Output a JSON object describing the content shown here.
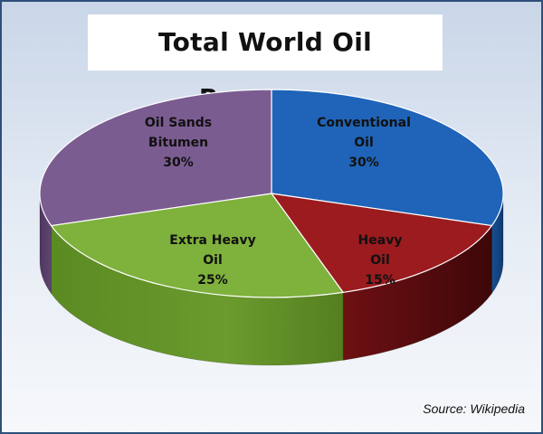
{
  "chart_data": {
    "type": "pie",
    "title": "Total World Oil Reserves",
    "slices": [
      {
        "label_lines": [
          "Conventional",
          "Oil",
          "30%"
        ],
        "value": 30,
        "color": "#1f64b8"
      },
      {
        "label_lines": [
          "Heavy",
          "Oil",
          "15%"
        ],
        "value": 15,
        "color": "#9b1b1f"
      },
      {
        "label_lines": [
          "Extra Heavy",
          "Oil",
          "25%"
        ],
        "value": 25,
        "color": "#7fb13d"
      },
      {
        "label_lines": [
          "Oil Sands",
          "Bitumen",
          "30%"
        ],
        "value": 30,
        "color": "#7b5c91"
      }
    ],
    "style": "3d-tilted",
    "legend": "none"
  },
  "source": "Source: Wikipedia"
}
